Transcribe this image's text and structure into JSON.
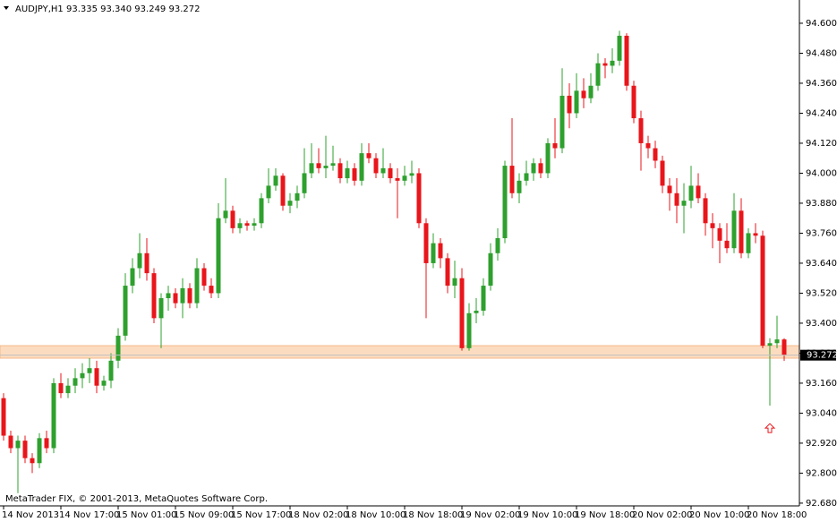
{
  "chart_data": {
    "type": "candlestick",
    "title": "AUDJPY,H1  93.335 93.340 93.249 93.272",
    "footer": "MetaTrader FIX, © 2001-2013, MetaQuotes Software Corp.",
    "up_color": "#2ea02e",
    "down_color": "#e8161b",
    "ylim": [
      92.669,
      94.693
    ],
    "yticks": [
      {
        "value": 94.6,
        "label": "94.600"
      },
      {
        "value": 94.48,
        "label": "94.480"
      },
      {
        "value": 94.36,
        "label": "94.360"
      },
      {
        "value": 94.24,
        "label": "94.240"
      },
      {
        "value": 94.12,
        "label": "94.120"
      },
      {
        "value": 94.0,
        "label": "94.000"
      },
      {
        "value": 93.88,
        "label": "93.880"
      },
      {
        "value": 93.76,
        "label": "93.760"
      },
      {
        "value": 93.64,
        "label": "93.640"
      },
      {
        "value": 93.52,
        "label": "93.520"
      },
      {
        "value": 93.4,
        "label": "93.400"
      },
      {
        "value": 93.28,
        "label": "93.280"
      },
      {
        "value": 93.16,
        "label": "93.160"
      },
      {
        "value": 93.04,
        "label": "93.040"
      },
      {
        "value": 92.92,
        "label": "92.920"
      },
      {
        "value": 92.8,
        "label": "92.800"
      },
      {
        "value": 92.68,
        "label": "92.680"
      }
    ],
    "last_price": {
      "value": 93.272,
      "label": "93.272"
    },
    "zone": [
      93.26,
      93.31
    ],
    "arrow": {
      "x": 107,
      "value": 92.98
    },
    "categories": [
      "14 Nov 2013",
      null,
      null,
      null,
      null,
      null,
      null,
      null,
      "14 Nov 17:00",
      null,
      null,
      null,
      null,
      null,
      null,
      null,
      "15 Nov 01:00",
      null,
      null,
      null,
      null,
      null,
      null,
      null,
      "15 Nov 09:00",
      null,
      null,
      null,
      null,
      null,
      null,
      null,
      "15 Nov 17:00",
      null,
      null,
      null,
      null,
      null,
      null,
      null,
      "18 Nov 02:00",
      null,
      null,
      null,
      null,
      null,
      null,
      null,
      "18 Nov 10:00",
      null,
      null,
      null,
      null,
      null,
      null,
      null,
      "18 Nov 18:00",
      null,
      null,
      null,
      null,
      null,
      null,
      null,
      "19 Nov 02:00",
      null,
      null,
      null,
      null,
      null,
      null,
      null,
      "19 Nov 10:00",
      null,
      null,
      null,
      null,
      null,
      null,
      null,
      "19 Nov 18:00",
      null,
      null,
      null,
      null,
      null,
      null,
      null,
      "20 Nov 02:00",
      null,
      null,
      null,
      null,
      null,
      null,
      null,
      "20 Nov 10:00",
      null,
      null,
      null,
      null,
      null,
      null,
      null,
      "20 Nov 18:00",
      null,
      null,
      null,
      null,
      null
    ],
    "ohlc": [
      [
        93.1,
        93.12,
        92.93,
        92.95
      ],
      [
        92.95,
        92.97,
        92.88,
        92.9
      ],
      [
        92.9,
        92.95,
        92.72,
        92.93
      ],
      [
        92.93,
        92.95,
        92.84,
        92.86
      ],
      [
        92.86,
        92.88,
        92.8,
        92.84
      ],
      [
        92.84,
        92.96,
        92.82,
        92.94
      ],
      [
        92.94,
        92.97,
        92.88,
        92.9
      ],
      [
        92.9,
        93.18,
        92.88,
        93.16
      ],
      [
        93.16,
        93.2,
        93.1,
        93.12
      ],
      [
        93.12,
        93.18,
        93.1,
        93.15
      ],
      [
        93.15,
        93.22,
        93.12,
        93.18
      ],
      [
        93.18,
        93.24,
        93.14,
        93.2
      ],
      [
        93.2,
        93.26,
        93.16,
        93.22
      ],
      [
        93.22,
        93.25,
        93.12,
        93.15
      ],
      [
        93.15,
        93.19,
        93.13,
        93.17
      ],
      [
        93.17,
        93.28,
        93.14,
        93.25
      ],
      [
        93.25,
        93.38,
        93.22,
        93.35
      ],
      [
        93.35,
        93.6,
        93.33,
        93.55
      ],
      [
        93.55,
        93.66,
        93.52,
        93.62
      ],
      [
        93.62,
        93.76,
        93.58,
        93.68
      ],
      [
        93.68,
        93.74,
        93.57,
        93.6
      ],
      [
        93.6,
        93.62,
        93.4,
        93.42
      ],
      [
        93.42,
        93.52,
        93.3,
        93.5
      ],
      [
        93.5,
        93.55,
        93.45,
        93.52
      ],
      [
        93.52,
        93.54,
        93.46,
        93.48
      ],
      [
        93.48,
        93.58,
        93.42,
        93.54
      ],
      [
        93.54,
        93.56,
        93.46,
        93.48
      ],
      [
        93.48,
        93.66,
        93.46,
        93.62
      ],
      [
        93.62,
        93.64,
        93.53,
        93.55
      ],
      [
        93.55,
        93.58,
        93.5,
        93.52
      ],
      [
        93.52,
        93.88,
        93.5,
        93.82
      ],
      [
        93.82,
        93.98,
        93.8,
        93.85
      ],
      [
        93.85,
        93.87,
        93.76,
        93.78
      ],
      [
        93.78,
        93.82,
        93.76,
        93.8
      ],
      [
        93.8,
        93.81,
        93.77,
        93.79
      ],
      [
        93.79,
        93.82,
        93.77,
        93.8
      ],
      [
        93.8,
        93.92,
        93.78,
        93.9
      ],
      [
        93.9,
        94.02,
        93.88,
        93.95
      ],
      [
        93.95,
        94.02,
        93.93,
        93.99
      ],
      [
        93.99,
        94.0,
        93.85,
        93.87
      ],
      [
        93.87,
        93.92,
        93.84,
        93.89
      ],
      [
        93.89,
        93.95,
        93.86,
        93.92
      ],
      [
        93.92,
        94.1,
        93.9,
        94.0
      ],
      [
        94.0,
        94.12,
        93.98,
        94.04
      ],
      [
        94.04,
        94.1,
        94.0,
        94.02
      ],
      [
        94.02,
        94.15,
        93.98,
        94.03
      ],
      [
        94.03,
        94.11,
        94.01,
        94.04
      ],
      [
        94.04,
        94.06,
        93.96,
        93.98
      ],
      [
        93.98,
        94.05,
        93.96,
        94.02
      ],
      [
        94.02,
        94.04,
        93.95,
        93.97
      ],
      [
        93.97,
        94.12,
        93.95,
        94.08
      ],
      [
        94.08,
        94.12,
        94.04,
        94.06
      ],
      [
        94.06,
        94.08,
        93.98,
        94.0
      ],
      [
        94.0,
        94.1,
        93.98,
        94.02
      ],
      [
        94.02,
        94.04,
        93.96,
        93.98
      ],
      [
        93.98,
        94.02,
        93.82,
        93.97
      ],
      [
        93.97,
        94.03,
        93.95,
        93.99
      ],
      [
        93.99,
        94.05,
        93.96,
        94.0
      ],
      [
        94.0,
        94.02,
        93.78,
        93.8
      ],
      [
        93.8,
        93.82,
        93.42,
        93.64
      ],
      [
        93.64,
        93.76,
        93.62,
        93.72
      ],
      [
        93.72,
        93.74,
        93.62,
        93.66
      ],
      [
        93.66,
        93.68,
        93.52,
        93.55
      ],
      [
        93.55,
        93.65,
        93.5,
        93.58
      ],
      [
        93.58,
        93.62,
        93.29,
        93.3
      ],
      [
        93.3,
        93.48,
        93.29,
        93.44
      ],
      [
        93.44,
        93.5,
        93.4,
        93.45
      ],
      [
        93.45,
        93.58,
        93.43,
        93.55
      ],
      [
        93.55,
        93.72,
        93.53,
        93.68
      ],
      [
        93.68,
        93.78,
        93.65,
        93.74
      ],
      [
        93.74,
        94.05,
        93.72,
        94.03
      ],
      [
        94.03,
        94.22,
        93.9,
        93.92
      ],
      [
        93.92,
        94.0,
        93.88,
        93.97
      ],
      [
        93.97,
        94.05,
        93.95,
        94.0
      ],
      [
        94.0,
        94.06,
        93.97,
        94.04
      ],
      [
        94.04,
        94.06,
        93.98,
        94.0
      ],
      [
        94.0,
        94.14,
        93.98,
        94.12
      ],
      [
        94.12,
        94.22,
        94.06,
        94.1
      ],
      [
        94.1,
        94.42,
        94.08,
        94.31
      ],
      [
        94.31,
        94.36,
        94.18,
        94.24
      ],
      [
        94.24,
        94.4,
        94.22,
        94.33
      ],
      [
        94.33,
        94.38,
        94.26,
        94.3
      ],
      [
        94.3,
        94.4,
        94.28,
        94.35
      ],
      [
        94.35,
        94.48,
        94.33,
        94.44
      ],
      [
        94.44,
        94.46,
        94.38,
        94.43
      ],
      [
        94.43,
        94.5,
        94.4,
        94.45
      ],
      [
        94.45,
        94.57,
        94.43,
        94.55
      ],
      [
        94.55,
        94.56,
        94.33,
        94.35
      ],
      [
        94.35,
        94.37,
        94.2,
        94.22
      ],
      [
        94.22,
        94.25,
        94.01,
        94.12
      ],
      [
        94.12,
        94.15,
        94.06,
        94.1
      ],
      [
        94.1,
        94.13,
        94.02,
        94.05
      ],
      [
        94.05,
        94.07,
        93.92,
        93.95
      ],
      [
        93.95,
        93.98,
        93.85,
        93.92
      ],
      [
        93.92,
        93.98,
        93.8,
        93.87
      ],
      [
        93.87,
        93.96,
        93.76,
        93.89
      ],
      [
        93.89,
        94.03,
        93.86,
        93.95
      ],
      [
        93.95,
        94.0,
        93.88,
        93.9
      ],
      [
        93.9,
        93.92,
        93.75,
        93.8
      ],
      [
        93.8,
        93.84,
        93.7,
        93.78
      ],
      [
        93.78,
        93.8,
        93.64,
        93.73
      ],
      [
        93.73,
        93.8,
        93.68,
        93.7
      ],
      [
        93.7,
        93.92,
        93.68,
        93.85
      ],
      [
        93.85,
        93.9,
        93.66,
        93.68
      ],
      [
        93.68,
        93.78,
        93.66,
        93.76
      ],
      [
        93.76,
        93.8,
        93.72,
        93.75
      ],
      [
        93.75,
        93.77,
        93.3,
        93.31
      ],
      [
        93.31,
        93.34,
        93.07,
        93.32
      ],
      [
        93.32,
        93.43,
        93.3,
        93.335
      ],
      [
        93.335,
        93.34,
        93.249,
        93.272
      ]
    ]
  }
}
